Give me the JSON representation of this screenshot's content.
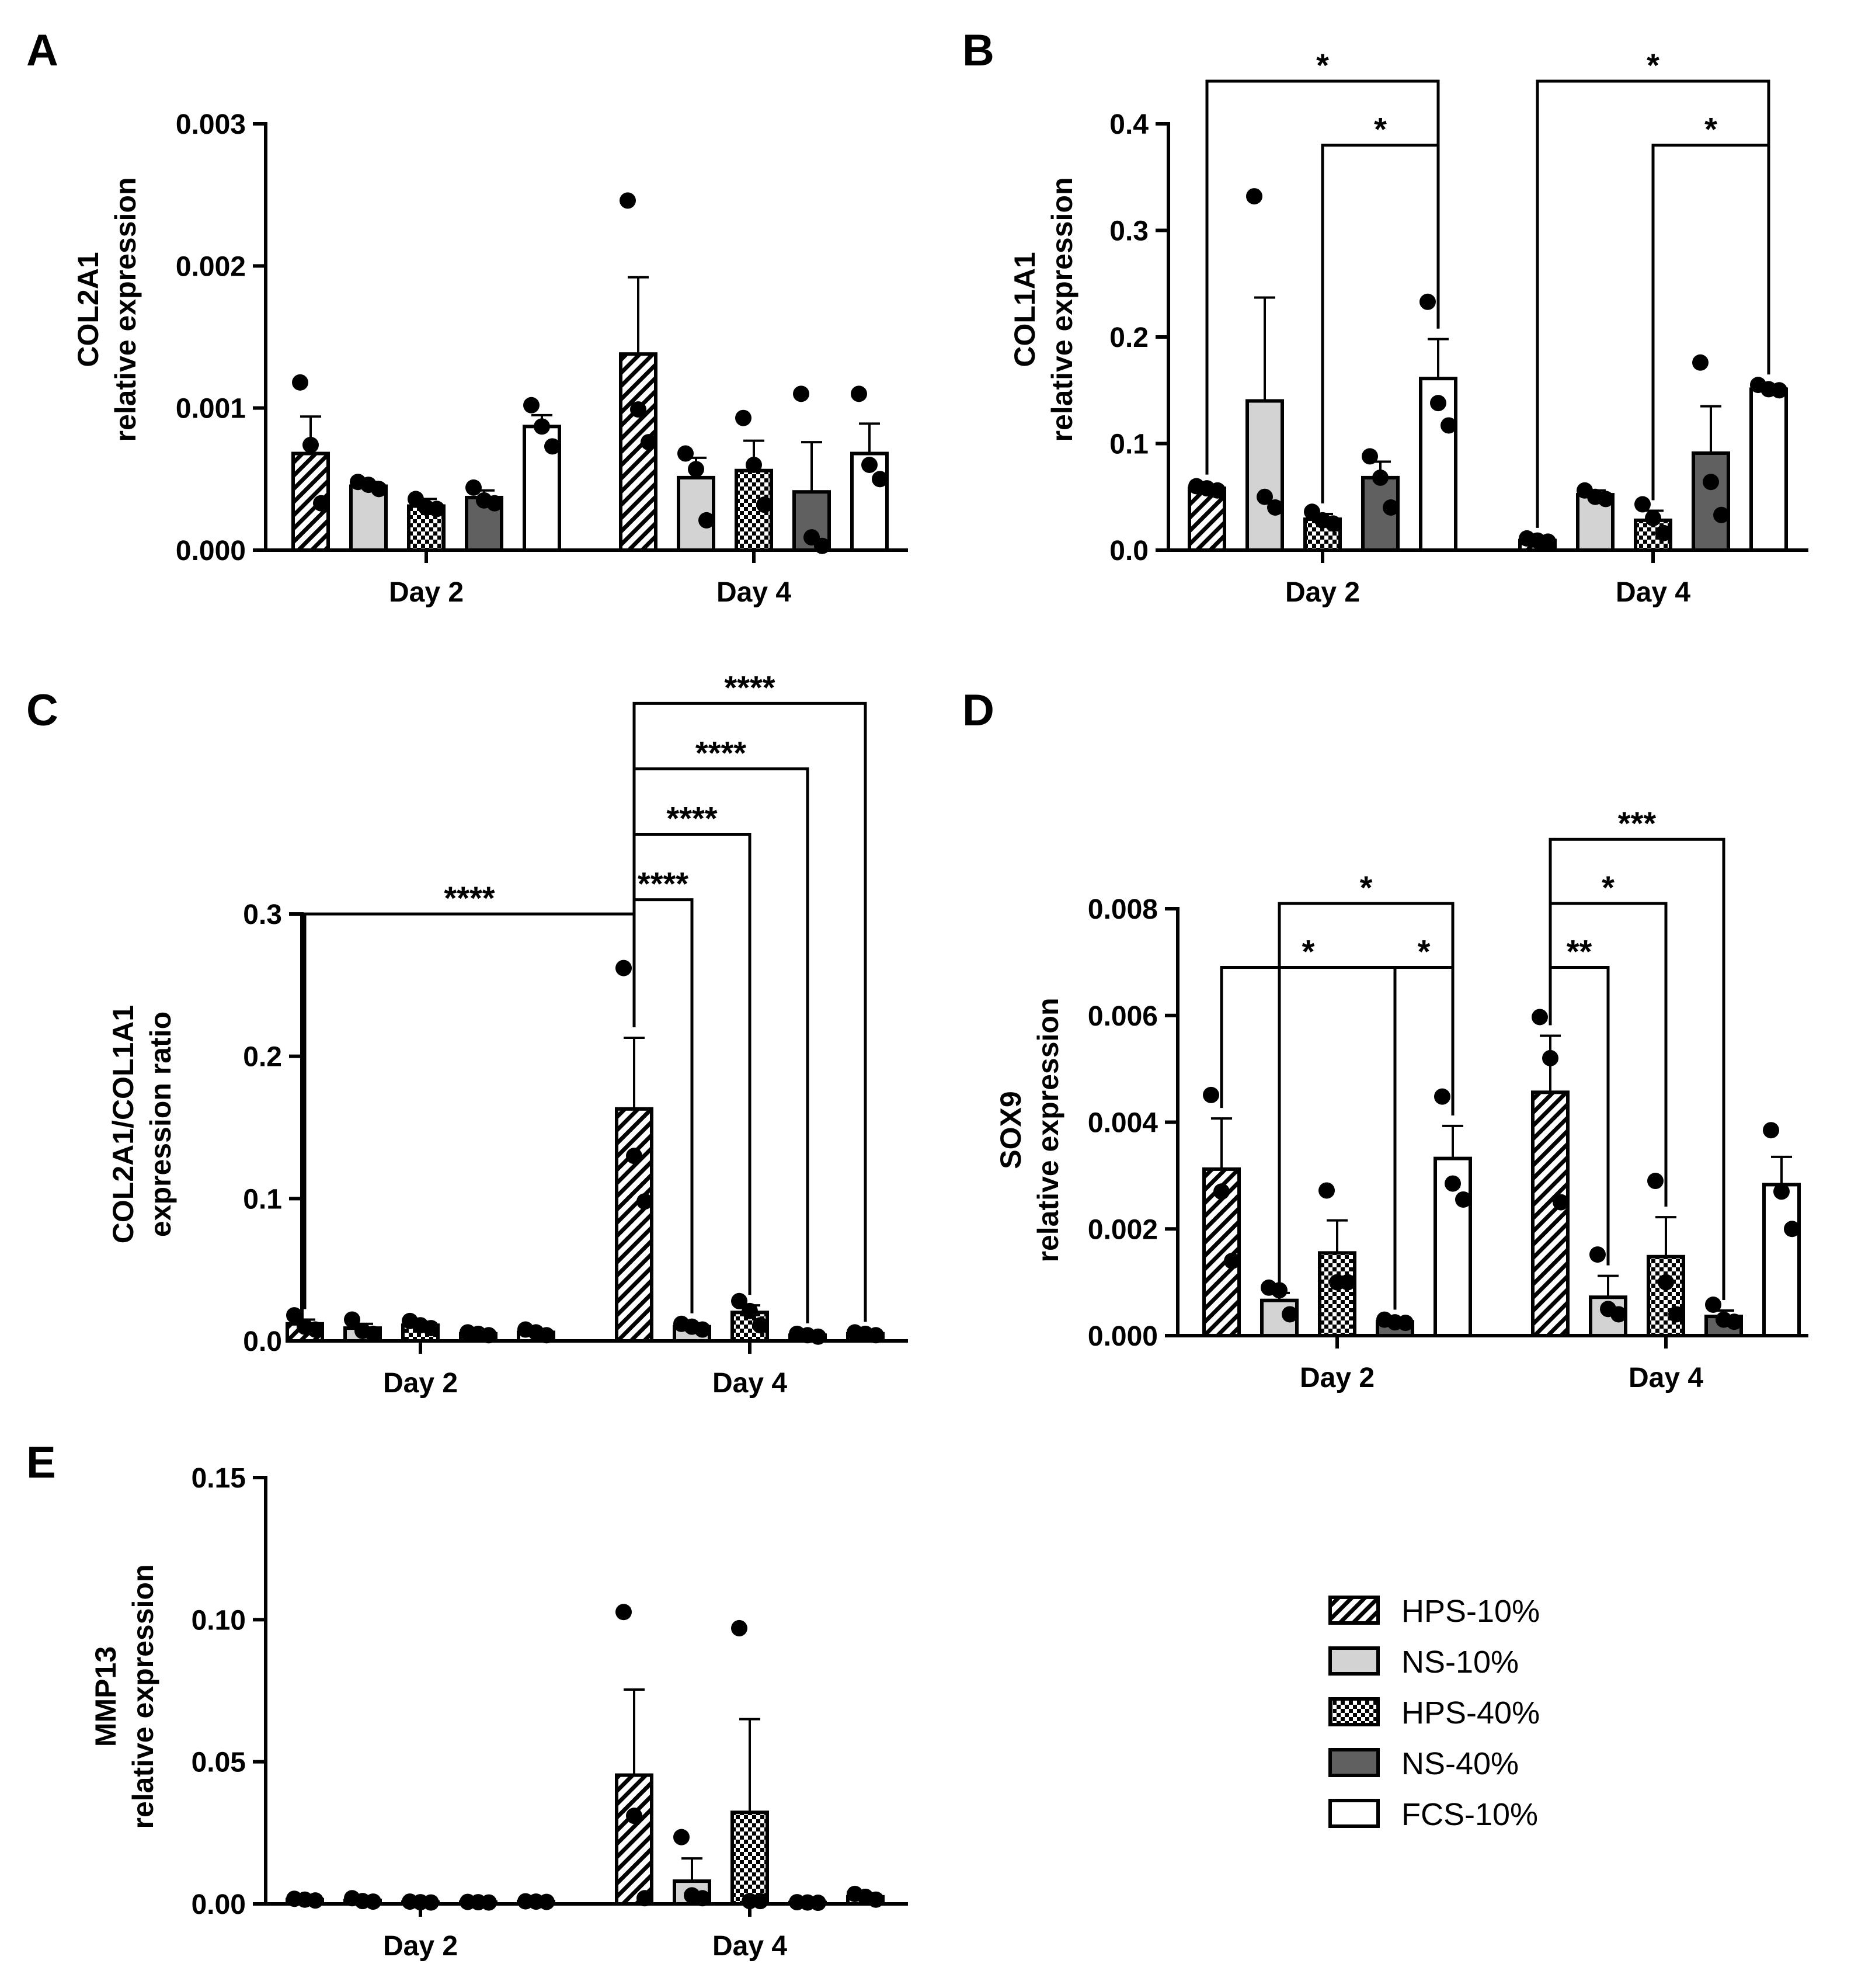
{
  "figure": {
    "legend": [
      {
        "label": "HPS-10%",
        "fill": "hatch"
      },
      {
        "label": "NS-10%",
        "fill": "light-gray"
      },
      {
        "label": "HPS-40%",
        "fill": "checker"
      },
      {
        "label": "NS-40%",
        "fill": "dark-gray"
      },
      {
        "label": "FCS-10%",
        "fill": "white"
      }
    ],
    "fills": {
      "light-gray": "#d3d3d3",
      "dark-gray": "#606060",
      "white": "#ffffff",
      "stroke": "#000000"
    }
  },
  "chart_data": [
    {
      "type": "bar",
      "panel": "A",
      "title_lines": [
        "COL2A1",
        "relative expression"
      ],
      "groups": [
        "Day 2",
        "Day 4"
      ],
      "series": [
        "HPS-10%",
        "NS-10%",
        "HPS-40%",
        "NS-40%",
        "FCS-10%"
      ],
      "ylim": [
        0,
        0.003
      ],
      "yticks": [
        "0.000",
        "0.001",
        "0.002",
        "0.003"
      ],
      "values": [
        [
          0.00068,
          0.00045,
          0.00031,
          0.00037,
          0.00087
        ],
        [
          0.00138,
          0.00051,
          0.00056,
          0.00041,
          0.00068
        ]
      ],
      "errors": [
        [
          0.00026,
          3e-05,
          5e-05,
          5e-05,
          8e-05
        ],
        [
          0.00054,
          0.00014,
          0.00021,
          0.00035,
          0.00021
        ]
      ],
      "points": [
        [
          [
            0.00118,
            0.00074,
            0.00033
          ],
          [
            0.00048,
            0.00046,
            0.00043
          ],
          [
            0.00036,
            0.0003,
            0.00029
          ],
          [
            0.00044,
            0.00035,
            0.00033
          ],
          [
            0.00102,
            0.00087,
            0.00073
          ]
        ],
        [
          [
            0.00246,
            0.00099,
            0.00076
          ],
          [
            0.00068,
            0.00057,
            0.00021
          ],
          [
            0.00093,
            0.0006,
            0.00032
          ],
          [
            0.0011,
            9e-05,
            3e-05
          ],
          [
            0.0011,
            0.0006,
            0.0005
          ]
        ]
      ],
      "comparisons": []
    },
    {
      "type": "bar",
      "panel": "B",
      "title_lines": [
        "COL1A1",
        "relative expression"
      ],
      "groups": [
        "Day 2",
        "Day 4"
      ],
      "series": [
        "HPS-10%",
        "NS-10%",
        "HPS-40%",
        "NS-40%",
        "FCS-10%"
      ],
      "ylim": [
        0,
        0.4
      ],
      "yticks": [
        "0.0",
        "0.1",
        "0.2",
        "0.3",
        "0.4"
      ],
      "values": [
        [
          0.058,
          0.14,
          0.029,
          0.068,
          0.161
        ],
        [
          0.009,
          0.052,
          0.028,
          0.091,
          0.151
        ]
      ],
      "errors": [
        [
          0.003,
          0.097,
          0.005,
          0.015,
          0.037
        ],
        [
          0.002,
          0.004,
          0.009,
          0.044,
          0.004
        ]
      ],
      "points": [
        [
          [
            0.06,
            0.058,
            0.056
          ],
          [
            0.332,
            0.05,
            0.04
          ],
          [
            0.036,
            0.028,
            0.025
          ],
          [
            0.088,
            0.068,
            0.04
          ],
          [
            0.233,
            0.138,
            0.117
          ]
        ],
        [
          [
            0.011,
            0.009,
            0.008
          ],
          [
            0.056,
            0.05,
            0.048
          ],
          [
            0.043,
            0.03,
            0.016
          ],
          [
            0.176,
            0.064,
            0.033
          ],
          [
            0.155,
            0.151,
            0.15
          ]
        ]
      ],
      "comparisons": [
        {
          "from": [
            0,
            0
          ],
          "to": [
            0,
            4
          ],
          "label": "*",
          "y": 0.44
        },
        {
          "from": [
            0,
            2
          ],
          "to": [
            0,
            4
          ],
          "label": "*",
          "y": 0.38
        },
        {
          "from": [
            1,
            0
          ],
          "to": [
            1,
            4
          ],
          "label": "*",
          "y": 0.44
        },
        {
          "from": [
            1,
            2
          ],
          "to": [
            1,
            4
          ],
          "label": "*",
          "y": 0.38
        }
      ]
    },
    {
      "type": "bar",
      "panel": "C",
      "title_lines": [
        "COL2A1/COL1A1",
        "expression ratio"
      ],
      "groups": [
        "Day 2",
        "Day 4"
      ],
      "series": [
        "HPS-10%",
        "NS-10%",
        "HPS-40%",
        "NS-40%",
        "FCS-10%"
      ],
      "ylim": [
        0,
        0.3
      ],
      "yticks": [
        "0.0",
        "0.1",
        "0.2",
        "0.3"
      ],
      "values": [
        [
          0.012,
          0.009,
          0.011,
          0.005,
          0.006
        ],
        [
          0.163,
          0.01,
          0.02,
          0.004,
          0.005
        ]
      ],
      "errors": [
        [
          0.003,
          0.003,
          0.002,
          0.001,
          0.001
        ],
        [
          0.05,
          0.002,
          0.005,
          0.001,
          0.001
        ]
      ],
      "points": [
        [
          [
            0.018,
            0.01,
            0.008
          ],
          [
            0.015,
            0.007,
            0.005
          ],
          [
            0.014,
            0.011,
            0.009
          ],
          [
            0.006,
            0.005,
            0.004
          ],
          [
            0.008,
            0.006,
            0.004
          ]
        ],
        [
          [
            0.262,
            0.13,
            0.098
          ],
          [
            0.012,
            0.01,
            0.008
          ],
          [
            0.028,
            0.021,
            0.011
          ],
          [
            0.005,
            0.004,
            0.003
          ],
          [
            0.006,
            0.005,
            0.004
          ]
        ]
      ],
      "comparisons": [
        {
          "from": [
            0,
            0
          ],
          "to": [
            1,
            0
          ],
          "label": "****",
          "y": 0.3
        },
        {
          "from": [
            1,
            0
          ],
          "to": [
            1,
            1
          ],
          "label": "****",
          "y": 0.31
        },
        {
          "from": [
            1,
            0
          ],
          "to": [
            1,
            2
          ],
          "label": "****",
          "y": 0.356
        },
        {
          "from": [
            1,
            0
          ],
          "to": [
            1,
            3
          ],
          "label": "****",
          "y": 0.402
        },
        {
          "from": [
            1,
            0
          ],
          "to": [
            1,
            4
          ],
          "label": "****",
          "y": 0.448
        }
      ]
    },
    {
      "type": "bar",
      "panel": "D",
      "title_lines": [
        "SOX9",
        "relative expression"
      ],
      "groups": [
        "Day 2",
        "Day 4"
      ],
      "series": [
        "HPS-10%",
        "NS-10%",
        "HPS-40%",
        "NS-40%",
        "FCS-10%"
      ],
      "ylim": [
        0,
        0.008
      ],
      "yticks": [
        "0.000",
        "0.002",
        "0.004",
        "0.006",
        "0.008"
      ],
      "values": [
        [
          0.00312,
          0.00066,
          0.00155,
          0.00026,
          0.00332
        ],
        [
          0.00456,
          0.00072,
          0.00148,
          0.00036,
          0.00283
        ]
      ],
      "errors": [
        [
          0.00095,
          0.00014,
          0.00061,
          3e-05,
          0.00061
        ],
        [
          0.00106,
          0.0004,
          0.00074,
          0.00011,
          0.00052
        ]
      ],
      "points": [
        [
          [
            0.00451,
            0.0027,
            0.0014
          ],
          [
            0.0009,
            0.00085,
            0.0004
          ],
          [
            0.00272,
            0.001,
            0.001
          ],
          [
            0.0003,
            0.00025,
            0.00024
          ],
          [
            0.00448,
            0.00285,
            0.00255
          ]
        ],
        [
          [
            0.00597,
            0.0052,
            0.0025
          ],
          [
            0.00152,
            0.0005,
            0.0004
          ],
          [
            0.0029,
            0.001,
            0.0004
          ],
          [
            0.00058,
            0.0003,
            0.00026
          ],
          [
            0.00385,
            0.0027,
            0.002
          ]
        ]
      ],
      "comparisons": [
        {
          "from": [
            0,
            0
          ],
          "to": [
            0,
            3
          ],
          "label": "*",
          "y": 0.0069
        },
        {
          "from": [
            0,
            3
          ],
          "to": [
            0,
            4
          ],
          "label": "*",
          "y": 0.0069
        },
        {
          "from": [
            0,
            1
          ],
          "to": [
            0,
            4
          ],
          "label": "*",
          "y": 0.0081
        },
        {
          "from": [
            1,
            0
          ],
          "to": [
            1,
            1
          ],
          "label": "**",
          "y": 0.0069
        },
        {
          "from": [
            1,
            0
          ],
          "to": [
            1,
            2
          ],
          "label": "*",
          "y": 0.0081
        },
        {
          "from": [
            1,
            0
          ],
          "to": [
            1,
            3
          ],
          "label": "***",
          "y": 0.0093
        }
      ]
    },
    {
      "type": "bar",
      "panel": "E",
      "title_lines": [
        "MMP13",
        "relative expression"
      ],
      "groups": [
        "Day 2",
        "Day 4"
      ],
      "series": [
        "HPS-10%",
        "NS-10%",
        "HPS-40%",
        "NS-40%",
        "FCS-10%"
      ],
      "ylim": [
        0,
        0.15
      ],
      "yticks": [
        "0.00",
        "0.05",
        "0.10",
        "0.15"
      ],
      "values": [
        [
          0.0015,
          0.0012,
          0.0006,
          0.0006,
          0.0008
        ],
        [
          0.0453,
          0.008,
          0.0322,
          0.0005,
          0.0025
        ]
      ],
      "errors": [
        [
          0.0002,
          0.0003,
          0.0001,
          0.0001,
          0.0001
        ],
        [
          0.0301,
          0.008,
          0.0328,
          0.0001,
          0.0005
        ]
      ],
      "points": [
        [
          [
            0.0018,
            0.0015,
            0.0012
          ],
          [
            0.002,
            0.001,
            0.0008
          ],
          [
            0.0008,
            0.0006,
            0.0005
          ],
          [
            0.0007,
            0.0006,
            0.0005
          ],
          [
            0.0009,
            0.0008,
            0.0007
          ]
        ],
        [
          [
            0.1027,
            0.031,
            0.002
          ],
          [
            0.0235,
            0.003,
            0.002
          ],
          [
            0.097,
            0.001,
            0.001
          ],
          [
            0.0006,
            0.0005,
            0.0004
          ],
          [
            0.0035,
            0.0025,
            0.0015
          ]
        ]
      ],
      "comparisons": []
    }
  ]
}
